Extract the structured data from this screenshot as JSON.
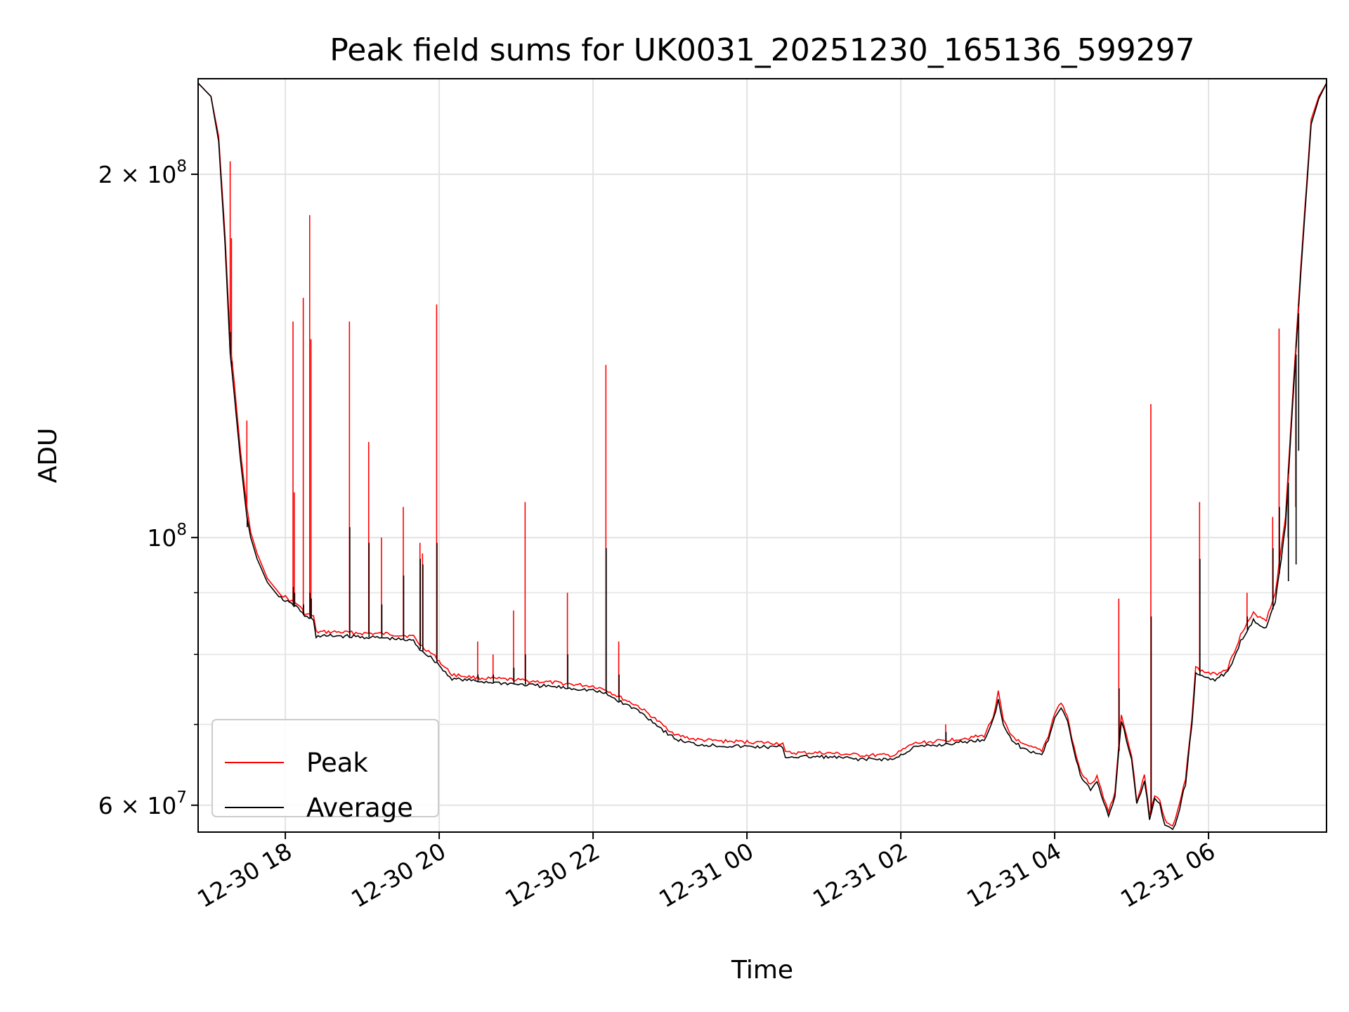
{
  "chart_data": {
    "type": "line",
    "title": "Peak field sums for UK0031_20251230_165136_599297",
    "xlabel": "Time",
    "ylabel": "ADU",
    "yscale": "log",
    "ylim": [
      57000000,
      240000000
    ],
    "xlim": [
      "2025-12-30 16:52",
      "2025-12-31 07:32"
    ],
    "grid": true,
    "legend_position": "lower-left",
    "x_ticks": [
      {
        "t": "2025-12-30 18:00",
        "label": "12-30 18"
      },
      {
        "t": "2025-12-30 20:00",
        "label": "12-30 20"
      },
      {
        "t": "2025-12-30 22:00",
        "label": "12-30 22"
      },
      {
        "t": "2025-12-31 00:00",
        "label": "12-31 00"
      },
      {
        "t": "2025-12-31 02:00",
        "label": "12-31 02"
      },
      {
        "t": "2025-12-31 04:00",
        "label": "12-31 04"
      },
      {
        "t": "2025-12-31 06:00",
        "label": "12-31 06"
      }
    ],
    "y_ticks_major": [
      {
        "v": 60000000,
        "label": "6 × 10^7"
      },
      {
        "v": 100000000,
        "label": "10^8"
      },
      {
        "v": 200000000,
        "label": "2 × 10^8"
      }
    ],
    "y_ticks_minor": [
      70000000,
      80000000,
      90000000
    ],
    "series": [
      {
        "name": "Peak",
        "color": "#ff0000",
        "points": [
          [
            "2025-12-30 16:52",
            238000000
          ],
          [
            "2025-12-30 17:02",
            232000000
          ],
          [
            "2025-12-30 17:08",
            215000000
          ],
          [
            "2025-12-30 17:13",
            178000000
          ],
          [
            "2025-12-30 17:17",
            145000000
          ],
          [
            "2025-12-30 17:20",
            135000000
          ],
          [
            "2025-12-30 17:25",
            118000000
          ],
          [
            "2025-12-30 17:30",
            106000000
          ],
          [
            "2025-12-30 17:33",
            101000000
          ],
          [
            "2025-12-30 17:38",
            97000000
          ],
          [
            "2025-12-30 17:46",
            92500000
          ],
          [
            "2025-12-30 17:55",
            90000000
          ],
          [
            "2025-12-30 18:05",
            88500000
          ],
          [
            "2025-12-30 18:10",
            88000000
          ],
          [
            "2025-12-30 18:15",
            86500000
          ],
          [
            "2025-12-30 18:22",
            86000000
          ],
          [
            "2025-12-30 18:24",
            83500000
          ],
          [
            "2025-12-30 18:40",
            83500000
          ],
          [
            "2025-12-30 19:00",
            83300000
          ],
          [
            "2025-12-30 19:20",
            83200000
          ],
          [
            "2025-12-30 19:40",
            82800000
          ],
          [
            "2025-12-30 19:45",
            81500000
          ],
          [
            "2025-12-30 19:55",
            80000000
          ],
          [
            "2025-12-30 20:00",
            79000000
          ],
          [
            "2025-12-30 20:03",
            78300000
          ],
          [
            "2025-12-30 20:10",
            77000000
          ],
          [
            "2025-12-30 20:30",
            76500000
          ],
          [
            "2025-12-30 21:00",
            76200000
          ],
          [
            "2025-12-30 21:30",
            75800000
          ],
          [
            "2025-12-30 22:00",
            75300000
          ],
          [
            "2025-12-30 22:10",
            74800000
          ],
          [
            "2025-12-30 22:20",
            73800000
          ],
          [
            "2025-12-30 22:35",
            72500000
          ],
          [
            "2025-12-30 22:45",
            71200000
          ],
          [
            "2025-12-30 22:55",
            69800000
          ],
          [
            "2025-12-30 23:05",
            68600000
          ],
          [
            "2025-12-30 23:20",
            68000000
          ],
          [
            "2025-12-30 23:40",
            67800000
          ],
          [
            "2025-12-31 00:00",
            67700000
          ],
          [
            "2025-12-31 00:28",
            67500000
          ],
          [
            "2025-12-31 00:30",
            66300000
          ],
          [
            "2025-12-31 01:00",
            66300000
          ],
          [
            "2025-12-31 01:30",
            66000000
          ],
          [
            "2025-12-31 01:55",
            66000000
          ],
          [
            "2025-12-31 02:10",
            67500000
          ],
          [
            "2025-12-31 02:30",
            67800000
          ],
          [
            "2025-12-31 02:50",
            68200000
          ],
          [
            "2025-12-31 03:05",
            68500000
          ],
          [
            "2025-12-31 03:12",
            71000000
          ],
          [
            "2025-12-31 03:16",
            74500000
          ],
          [
            "2025-12-31 03:20",
            70500000
          ],
          [
            "2025-12-31 03:25",
            68800000
          ],
          [
            "2025-12-31 03:35",
            67300000
          ],
          [
            "2025-12-31 03:50",
            66600000
          ],
          [
            "2025-12-31 03:55",
            68500000
          ],
          [
            "2025-12-31 04:00",
            71500000
          ],
          [
            "2025-12-31 04:05",
            73000000
          ],
          [
            "2025-12-31 04:10",
            71000000
          ],
          [
            "2025-12-31 04:15",
            67000000
          ],
          [
            "2025-12-31 04:20",
            64000000
          ],
          [
            "2025-12-31 04:28",
            62300000
          ],
          [
            "2025-12-31 04:33",
            63300000
          ],
          [
            "2025-12-31 04:38",
            61000000
          ],
          [
            "2025-12-31 04:42",
            59300000
          ],
          [
            "2025-12-31 04:47",
            61500000
          ],
          [
            "2025-12-31 04:52",
            71500000
          ],
          [
            "2025-12-31 04:56",
            68500000
          ],
          [
            "2025-12-31 05:00",
            66000000
          ],
          [
            "2025-12-31 05:04",
            60500000
          ],
          [
            "2025-12-31 05:10",
            63500000
          ],
          [
            "2025-12-31 05:14",
            59000000
          ],
          [
            "2025-12-31 05:18",
            61200000
          ],
          [
            "2025-12-31 05:22",
            60500000
          ],
          [
            "2025-12-31 05:26",
            58300000
          ],
          [
            "2025-12-31 05:32",
            57600000
          ],
          [
            "2025-12-31 05:36",
            59300000
          ],
          [
            "2025-12-31 05:42",
            63000000
          ],
          [
            "2025-12-31 05:47",
            71000000
          ],
          [
            "2025-12-31 05:50",
            78000000
          ],
          [
            "2025-12-31 05:55",
            77500000
          ],
          [
            "2025-12-31 06:05",
            77000000
          ],
          [
            "2025-12-31 06:15",
            78000000
          ],
          [
            "2025-12-31 06:25",
            83000000
          ],
          [
            "2025-12-31 06:35",
            86500000
          ],
          [
            "2025-12-31 06:45",
            85500000
          ],
          [
            "2025-12-31 06:52",
            90000000
          ],
          [
            "2025-12-31 07:00",
            104000000
          ],
          [
            "2025-12-31 07:05",
            128000000
          ],
          [
            "2025-12-31 07:12",
            168000000
          ],
          [
            "2025-12-31 07:20",
            222000000
          ],
          [
            "2025-12-31 07:26",
            232000000
          ],
          [
            "2025-12-31 07:32",
            238000000
          ]
        ]
      },
      {
        "name": "Average",
        "color": "#000000",
        "points": [
          [
            "2025-12-30 16:52",
            238000000
          ],
          [
            "2025-12-30 17:02",
            232000000
          ],
          [
            "2025-12-30 17:08",
            213000000
          ],
          [
            "2025-12-30 17:13",
            175000000
          ],
          [
            "2025-12-30 17:17",
            142000000
          ],
          [
            "2025-12-30 17:20",
            132000000
          ],
          [
            "2025-12-30 17:25",
            116000000
          ],
          [
            "2025-12-30 17:30",
            104000000
          ],
          [
            "2025-12-30 17:33",
            100000000
          ],
          [
            "2025-12-30 17:38",
            96000000
          ],
          [
            "2025-12-30 17:46",
            91800000
          ],
          [
            "2025-12-30 17:55",
            89300000
          ],
          [
            "2025-12-30 18:05",
            88000000
          ],
          [
            "2025-12-30 18:10",
            87500000
          ],
          [
            "2025-12-30 18:15",
            86000000
          ],
          [
            "2025-12-30 18:22",
            85500000
          ],
          [
            "2025-12-30 18:24",
            82800000
          ],
          [
            "2025-12-30 18:40",
            82900000
          ],
          [
            "2025-12-30 19:00",
            82700000
          ],
          [
            "2025-12-30 19:20",
            82500000
          ],
          [
            "2025-12-30 19:40",
            82100000
          ],
          [
            "2025-12-30 19:45",
            80800000
          ],
          [
            "2025-12-30 19:55",
            79300000
          ],
          [
            "2025-12-30 20:00",
            78400000
          ],
          [
            "2025-12-30 20:03",
            77600000
          ],
          [
            "2025-12-30 20:10",
            76400000
          ],
          [
            "2025-12-30 20:30",
            76000000
          ],
          [
            "2025-12-30 21:00",
            75600000
          ],
          [
            "2025-12-30 21:30",
            75200000
          ],
          [
            "2025-12-30 22:00",
            74700000
          ],
          [
            "2025-12-30 22:10",
            74200000
          ],
          [
            "2025-12-30 22:20",
            73200000
          ],
          [
            "2025-12-30 22:35",
            71900000
          ],
          [
            "2025-12-30 22:45",
            70600000
          ],
          [
            "2025-12-30 22:55",
            69200000
          ],
          [
            "2025-12-30 23:05",
            68000000
          ],
          [
            "2025-12-30 23:20",
            67400000
          ],
          [
            "2025-12-30 23:40",
            67200000
          ],
          [
            "2025-12-31 00:00",
            67100000
          ],
          [
            "2025-12-31 00:28",
            67000000
          ],
          [
            "2025-12-31 00:30",
            65800000
          ],
          [
            "2025-12-31 01:00",
            65800000
          ],
          [
            "2025-12-31 01:30",
            65500000
          ],
          [
            "2025-12-31 01:55",
            65500000
          ],
          [
            "2025-12-31 02:10",
            67000000
          ],
          [
            "2025-12-31 02:30",
            67300000
          ],
          [
            "2025-12-31 02:50",
            67700000
          ],
          [
            "2025-12-31 03:05",
            68000000
          ],
          [
            "2025-12-31 03:12",
            70500000
          ],
          [
            "2025-12-31 03:16",
            73500000
          ],
          [
            "2025-12-31 03:20",
            70000000
          ],
          [
            "2025-12-31 03:25",
            68300000
          ],
          [
            "2025-12-31 03:35",
            66800000
          ],
          [
            "2025-12-31 03:50",
            66100000
          ],
          [
            "2025-12-31 03:55",
            68000000
          ],
          [
            "2025-12-31 04:00",
            71000000
          ],
          [
            "2025-12-31 04:05",
            72400000
          ],
          [
            "2025-12-31 04:10",
            70500000
          ],
          [
            "2025-12-31 04:15",
            66500000
          ],
          [
            "2025-12-31 04:20",
            63500000
          ],
          [
            "2025-12-31 04:28",
            61800000
          ],
          [
            "2025-12-31 04:33",
            62800000
          ],
          [
            "2025-12-31 04:38",
            60500000
          ],
          [
            "2025-12-31 04:42",
            58800000
          ],
          [
            "2025-12-31 04:47",
            61000000
          ],
          [
            "2025-12-31 04:52",
            70500000
          ],
          [
            "2025-12-31 04:56",
            68000000
          ],
          [
            "2025-12-31 05:00",
            65500000
          ],
          [
            "2025-12-31 05:04",
            60000000
          ],
          [
            "2025-12-31 05:10",
            63000000
          ],
          [
            "2025-12-31 05:14",
            58500000
          ],
          [
            "2025-12-31 05:18",
            60700000
          ],
          [
            "2025-12-31 05:22",
            60000000
          ],
          [
            "2025-12-31 05:26",
            57800000
          ],
          [
            "2025-12-31 05:32",
            57200000
          ],
          [
            "2025-12-31 05:36",
            58800000
          ],
          [
            "2025-12-31 05:42",
            62500000
          ],
          [
            "2025-12-31 05:47",
            70000000
          ],
          [
            "2025-12-31 05:50",
            77000000
          ],
          [
            "2025-12-31 05:55",
            76800000
          ],
          [
            "2025-12-31 06:05",
            76300000
          ],
          [
            "2025-12-31 06:15",
            77300000
          ],
          [
            "2025-12-31 06:25",
            82000000
          ],
          [
            "2025-12-31 06:35",
            85500000
          ],
          [
            "2025-12-31 06:45",
            84000000
          ],
          [
            "2025-12-31 06:52",
            88500000
          ],
          [
            "2025-12-31 07:00",
            102000000
          ],
          [
            "2025-12-31 07:05",
            126000000
          ],
          [
            "2025-12-31 07:12",
            166000000
          ],
          [
            "2025-12-31 07:20",
            220000000
          ],
          [
            "2025-12-31 07:26",
            231000000
          ],
          [
            "2025-12-31 07:32",
            238000000
          ]
        ]
      }
    ],
    "spikes": [
      {
        "t": "2025-12-30 17:17",
        "peak": 205000000,
        "avg": 148000000
      },
      {
        "t": "2025-12-30 17:18",
        "peak": 177000000,
        "avg": 140000000
      },
      {
        "t": "2025-12-30 17:30",
        "peak": 125000000,
        "avg": 102000000
      },
      {
        "t": "2025-12-30 18:06",
        "peak": 151000000,
        "avg": 91000000
      },
      {
        "t": "2025-12-30 18:07",
        "peak": 109000000,
        "avg": 90000000
      },
      {
        "t": "2025-12-30 18:14",
        "peak": 158000000,
        "avg": 88000000
      },
      {
        "t": "2025-12-30 18:19",
        "peak": 185000000,
        "avg": 90000000
      },
      {
        "t": "2025-12-30 18:20",
        "peak": 146000000,
        "avg": 89000000
      },
      {
        "t": "2025-12-30 18:50",
        "peak": 151000000,
        "avg": 102000000
      },
      {
        "t": "2025-12-30 19:05",
        "peak": 120000000,
        "avg": 99000000
      },
      {
        "t": "2025-12-30 19:15",
        "peak": 100000000,
        "avg": 88000000
      },
      {
        "t": "2025-12-30 19:32",
        "peak": 106000000,
        "avg": 93000000
      },
      {
        "t": "2025-12-30 19:45",
        "peak": 99000000,
        "avg": 96000000
      },
      {
        "t": "2025-12-30 19:47",
        "peak": 97000000,
        "avg": 95000000
      },
      {
        "t": "2025-12-30 19:58",
        "peak": 156000000,
        "avg": 99000000
      },
      {
        "t": "2025-12-30 20:30",
        "peak": 82000000,
        "avg": 77000000
      },
      {
        "t": "2025-12-30 20:42",
        "peak": 80000000,
        "avg": 77000000
      },
      {
        "t": "2025-12-30 20:58",
        "peak": 87000000,
        "avg": 78000000
      },
      {
        "t": "2025-12-30 21:07",
        "peak": 107000000,
        "avg": 80000000
      },
      {
        "t": "2025-12-30 21:40",
        "peak": 90000000,
        "avg": 80000000
      },
      {
        "t": "2025-12-30 22:10",
        "peak": 139000000,
        "avg": 98000000
      },
      {
        "t": "2025-12-30 22:20",
        "peak": 82000000,
        "avg": 77000000
      },
      {
        "t": "2025-12-31 02:35",
        "peak": 70000000,
        "avg": 69000000
      },
      {
        "t": "2025-12-31 04:50",
        "peak": 89000000,
        "avg": 75000000
      },
      {
        "t": "2025-12-31 05:15",
        "peak": 129000000,
        "avg": 86000000
      },
      {
        "t": "2025-12-31 05:53",
        "peak": 107000000,
        "avg": 96000000
      },
      {
        "t": "2025-12-31 06:30",
        "peak": 90000000,
        "avg": 86000000
      },
      {
        "t": "2025-12-31 06:50",
        "peak": 104000000,
        "avg": 98000000
      },
      {
        "t": "2025-12-31 06:55",
        "peak": 149000000,
        "avg": 106000000
      },
      {
        "t": "2025-12-31 07:02",
        "peak": 100000000,
        "avg": 92000000
      },
      {
        "t": "2025-12-31 07:08",
        "peak": 106000000,
        "avg": 95000000
      },
      {
        "t": "2025-12-31 07:10",
        "peak": 149000000,
        "avg": 118000000
      }
    ]
  }
}
